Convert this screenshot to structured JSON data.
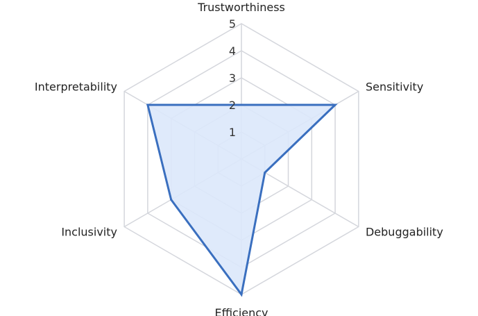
{
  "chart_data": {
    "type": "radar",
    "title": "",
    "axes": [
      "Trustworthiness",
      "Sensitivity",
      "Debuggability",
      "Efficiency",
      "Inclusivity",
      "Interpretability"
    ],
    "series": [
      {
        "values": [
          2,
          4,
          1,
          5,
          3,
          4
        ]
      }
    ],
    "r_range": [
      0,
      5
    ],
    "r_ticks": [
      "1",
      "2",
      "3",
      "4",
      "5"
    ],
    "grid": true,
    "legend": "none",
    "colors": {
      "line": "#3a6fbf",
      "fill": "#dce8fb",
      "grid": "#d4d6dc"
    }
  }
}
